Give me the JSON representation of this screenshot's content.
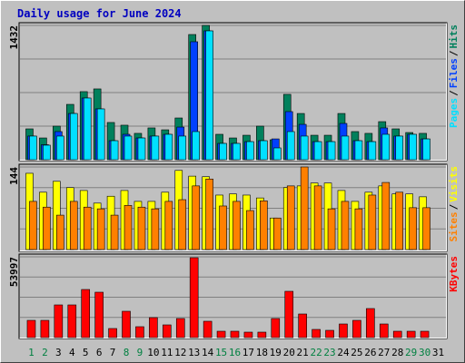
{
  "chart_data": [
    {
      "type": "bar",
      "title": "Daily usage for June 2024",
      "categories": [
        "1",
        "2",
        "3",
        "4",
        "5",
        "6",
        "7",
        "8",
        "9",
        "10",
        "11",
        "12",
        "13",
        "14",
        "15",
        "16",
        "17",
        "18",
        "19",
        "20",
        "21",
        "22",
        "23",
        "24",
        "25",
        "26",
        "27",
        "28",
        "29",
        "30",
        "31"
      ],
      "category_colors": [
        "#008040",
        "#008040",
        "#000000",
        "#000000",
        "#000000",
        "#000000",
        "#000000",
        "#008040",
        "#008040",
        "#000000",
        "#000000",
        "#000000",
        "#000000",
        "#000000",
        "#008040",
        "#008040",
        "#000000",
        "#000000",
        "#000000",
        "#000000",
        "#000000",
        "#008040",
        "#008040",
        "#000000",
        "#000000",
        "#000000",
        "#000000",
        "#000000",
        "#008040",
        "#008040",
        "#000000"
      ],
      "legend_separator": "/",
      "series": [
        {
          "name": "Hits",
          "color": "#00805c",
          "values": [
            329,
            232,
            358,
            590,
            726,
            755,
            397,
            368,
            281,
            339,
            319,
            445,
            1335,
            1432,
            271,
            232,
            261,
            358,
            213,
            697,
            493,
            261,
            261,
            493,
            300,
            281,
            406,
            329,
            290,
            281,
            0
          ]
        },
        {
          "name": "Files",
          "color": "#0040ff",
          "values": [
            252,
            160,
            300,
            493,
            658,
            542,
            203,
            271,
            232,
            252,
            271,
            348,
            1258,
            1374,
            174,
            174,
            193,
            203,
            222,
            513,
            377,
            193,
            193,
            387,
            203,
            193,
            339,
            252,
            271,
            222,
            0
          ]
        },
        {
          "name": "Pages",
          "color": "#00e0ff",
          "values": [
            252,
            155,
            252,
            493,
            658,
            542,
            203,
            252,
            232,
            252,
            271,
            252,
            300,
            1374,
            174,
            174,
            193,
            203,
            126,
            300,
            252,
            193,
            193,
            252,
            203,
            193,
            271,
            252,
            271,
            222,
            0
          ]
        }
      ],
      "ylim": [
        0,
        1432
      ],
      "yticks": [
        1432
      ]
    },
    {
      "type": "bar",
      "legend_separator": "/",
      "series": [
        {
          "name": "Visits",
          "color": "#ffff00",
          "values": [
            133,
            100,
            119,
            108,
            103,
            81,
            93,
            103,
            84,
            84,
            100,
            138,
            128,
            127,
            95,
            97,
            95,
            90,
            55,
            108,
            111,
            116,
            116,
            103,
            84,
            100,
            111,
            97,
            97,
            92,
            0
          ]
        },
        {
          "name": "Sites",
          "color": "#ff8000",
          "values": [
            84,
            74,
            60,
            84,
            74,
            71,
            60,
            77,
            74,
            71,
            84,
            87,
            111,
            123,
            76,
            84,
            68,
            85,
            55,
            111,
            144,
            111,
            71,
            84,
            71,
            95,
            117,
            100,
            73,
            73,
            0
          ]
        }
      ],
      "ylim": [
        0,
        144
      ],
      "yticks": [
        144
      ]
    },
    {
      "type": "bar",
      "series": [
        {
          "name": "KBytes",
          "color": "#ff0000",
          "values": [
            11527,
            11527,
            21841,
            21841,
            32155,
            30335,
            6067,
            17594,
            7280,
            13347,
            8494,
            12741,
            53390,
            10921,
            4247,
            4247,
            3640,
            3640,
            12741,
            30942,
            15774,
            5460,
            4854,
            9101,
            11527,
            19415,
            9101,
            4247,
            4247,
            4247,
            0
          ]
        }
      ],
      "ylim": [
        0,
        53997
      ],
      "yticks": [
        53997
      ]
    }
  ]
}
